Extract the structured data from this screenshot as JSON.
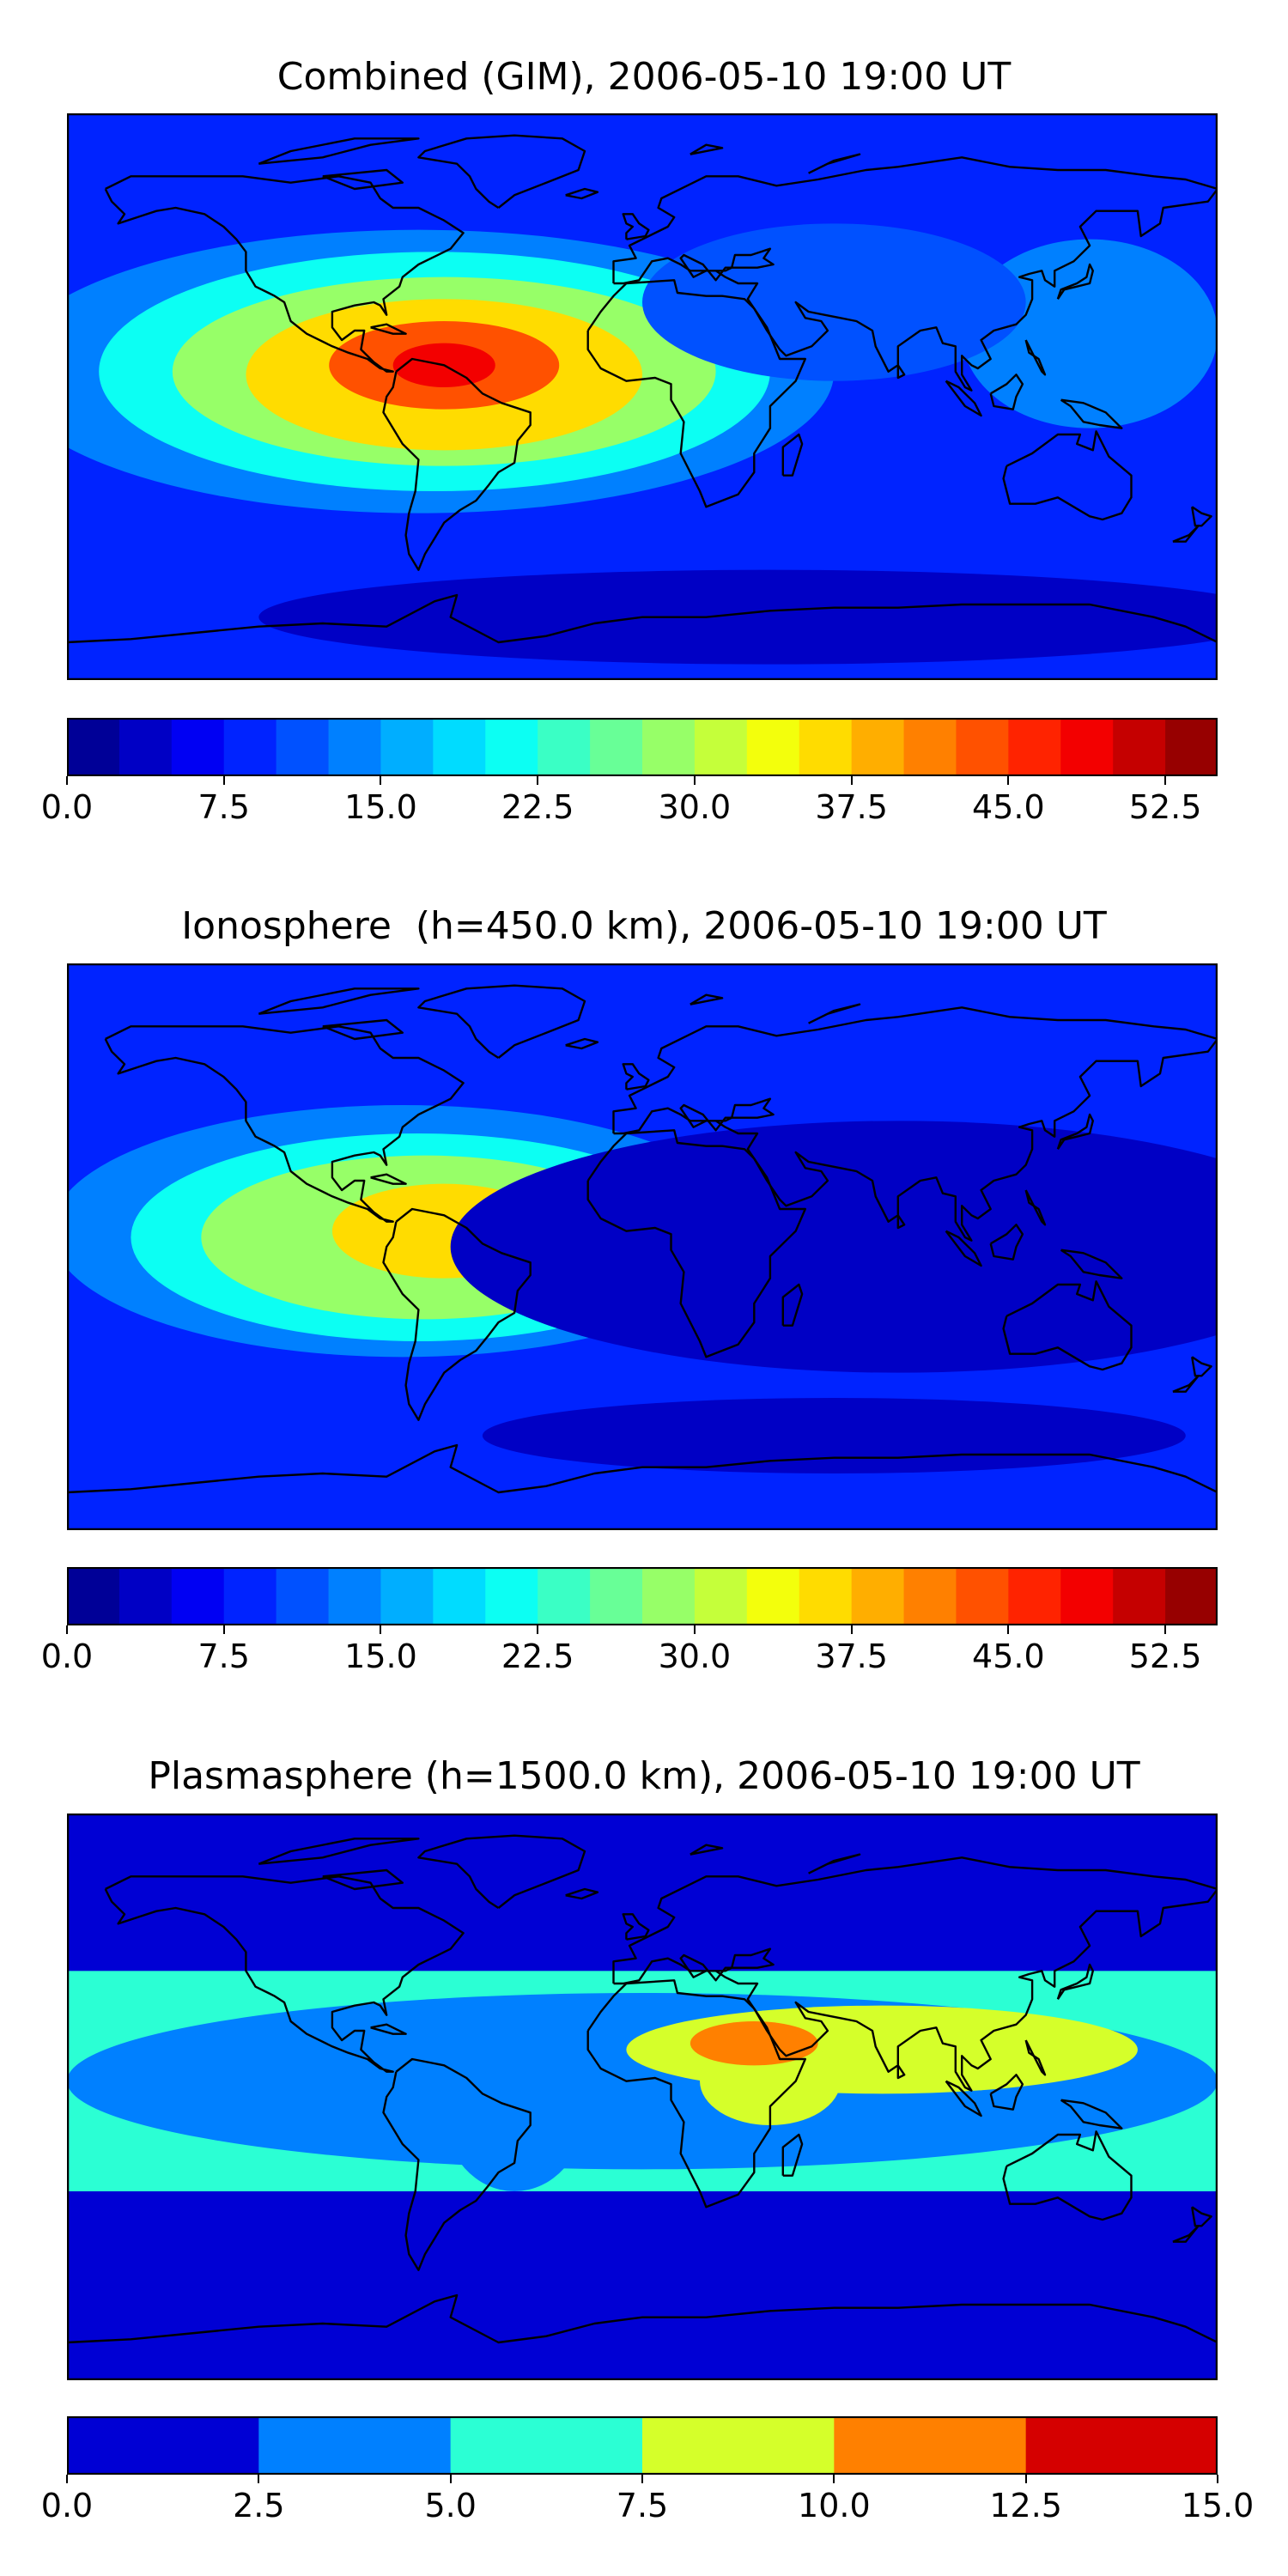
{
  "panels": [
    {
      "title": "Combined (GIM), 2006-05-10 19:00 UT",
      "variable": "Combined (GIM)",
      "colorbar": {
        "vmin": 0.0,
        "vmax": 55.0,
        "step": 2.5,
        "ticks": [
          "0.0",
          "7.5",
          "15.0",
          "22.5",
          "30.0",
          "37.5",
          "45.0",
          "52.5"
        ],
        "colormap": "jet"
      },
      "blobs": [
        {
          "lon": -70,
          "lat": 8,
          "rx": 130,
          "ry": 45,
          "value": 12.5
        },
        {
          "lon": -65,
          "lat": 8,
          "rx": 105,
          "ry": 38,
          "value": 20.0
        },
        {
          "lon": -62,
          "lat": 8,
          "rx": 85,
          "ry": 30,
          "value": 27.5
        },
        {
          "lon": -62,
          "lat": 7,
          "rx": 62,
          "ry": 24,
          "value": 35.0
        },
        {
          "lon": -62,
          "lat": 10,
          "rx": 36,
          "ry": 14,
          "value": 42.5
        },
        {
          "lon": -62,
          "lat": 10,
          "rx": 16,
          "ry": 7,
          "value": 47.5
        },
        {
          "lon": 140,
          "lat": 20,
          "rx": 40,
          "ry": 30,
          "value": 12.5
        },
        {
          "lon": 60,
          "lat": 30,
          "rx": 60,
          "ry": 25,
          "value": 10.0
        },
        {
          "lon": 40,
          "lat": -70,
          "rx": 160,
          "ry": 15,
          "value": 2.5
        }
      ],
      "background_value": 7.5
    },
    {
      "title": "Ionosphere  (h=450.0 km), 2006-05-10 19:00 UT",
      "variable": "Ionosphere",
      "colorbar": {
        "vmin": 0.0,
        "vmax": 55.0,
        "step": 2.5,
        "ticks": [
          "0.0",
          "7.5",
          "15.0",
          "22.5",
          "30.0",
          "37.5",
          "45.0",
          "52.5"
        ],
        "colormap": "jet"
      },
      "blobs": [
        {
          "lon": -75,
          "lat": 5,
          "rx": 110,
          "ry": 40,
          "value": 12.5
        },
        {
          "lon": -70,
          "lat": 3,
          "rx": 90,
          "ry": 33,
          "value": 20.0
        },
        {
          "lon": -68,
          "lat": 3,
          "rx": 70,
          "ry": 26,
          "value": 27.5
        },
        {
          "lon": -62,
          "lat": 5,
          "rx": 35,
          "ry": 15,
          "value": 35.0
        },
        {
          "lon": 80,
          "lat": 0,
          "rx": 140,
          "ry": 40,
          "value": 2.5
        },
        {
          "lon": 60,
          "lat": -60,
          "rx": 110,
          "ry": 12,
          "value": 2.5
        }
      ],
      "background_value": 7.5
    },
    {
      "title": "Plasmasphere (h=1500.0 km), 2006-05-10 19:00 UT",
      "variable": "Plasmasphere",
      "colorbar": {
        "vmin": 0.0,
        "vmax": 15.0,
        "step": 2.5,
        "ticks": [
          "0.0",
          "2.5",
          "5.0",
          "7.5",
          "10.0",
          "12.5",
          "15.0"
        ],
        "colormap": "jet"
      },
      "blobs": [
        {
          "lon": 0,
          "lat": 5,
          "rx": 180,
          "ry": 28,
          "value": 3.75
        },
        {
          "lon": -40,
          "lat": -5,
          "rx": 22,
          "ry": 25,
          "value": 3.75
        },
        {
          "lon": 75,
          "lat": 15,
          "rx": 80,
          "ry": 14,
          "value": 8.75
        },
        {
          "lon": 40,
          "lat": 5,
          "rx": 22,
          "ry": 14,
          "value": 8.75
        },
        {
          "lon": 35,
          "lat": 17,
          "rx": 20,
          "ry": 7,
          "value": 11.25
        }
      ],
      "background_value": 1.25,
      "band": {
        "lat_north": 40,
        "lat_south": -30,
        "value": 6.25
      }
    }
  ]
}
